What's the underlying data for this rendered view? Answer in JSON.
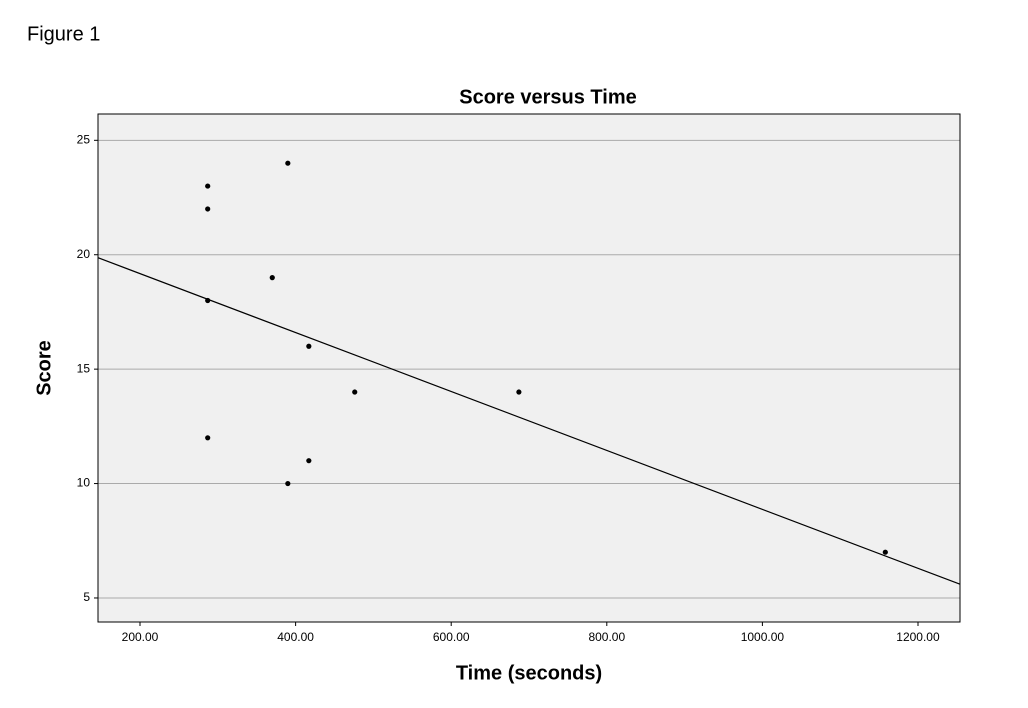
{
  "figure_label": "Figure 1",
  "chart_data": {
    "type": "scatter",
    "title": "Score versus Time",
    "x_label": "Time (seconds)",
    "y_label": "Score",
    "x": [
      287,
      287,
      287,
      287,
      390,
      390,
      370,
      417,
      417,
      476,
      687,
      1158
    ],
    "y": [
      23,
      22,
      18,
      12,
      24,
      10,
      19,
      16,
      11,
      14,
      14,
      7
    ],
    "color": "#000000",
    "fit_line": {
      "x": [
        146,
        1254
      ],
      "y": [
        19.87,
        5.6
      ],
      "color": "#000000"
    },
    "xlim": [
      146,
      1254
    ],
    "ylim": [
      3.95,
      26.15
    ],
    "xticks": [
      {
        "value": 200,
        "label": "200.00"
      },
      {
        "value": 400,
        "label": "400.00"
      },
      {
        "value": 600,
        "label": "600.00"
      },
      {
        "value": 800,
        "label": "800.00"
      },
      {
        "value": 1000,
        "label": "1000.00"
      },
      {
        "value": 1200,
        "label": "1200.00"
      }
    ],
    "yticks": [
      5,
      10,
      15,
      20,
      25
    ],
    "grid": true
  }
}
